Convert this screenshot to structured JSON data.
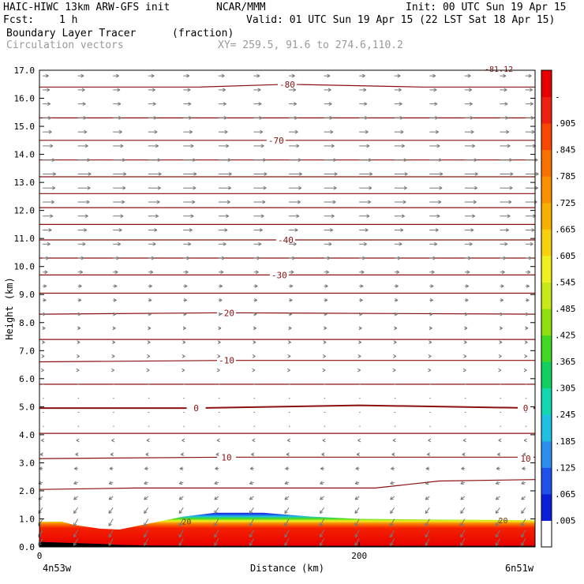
{
  "header": {
    "model": "HAIC-HIWC 13km ARW-GFS init",
    "org": "NCAR/MMM",
    "init": "Init: 00 UTC Sun 19 Apr 15",
    "fcst_label": "Fcst:",
    "fcst_value": "1 h",
    "valid": "Valid: 01 UTC Sun 19 Apr 15 (22 LST Sat 18 Apr 15)",
    "field1": "Boundary Layer Tracer",
    "field1_units": "(fraction)",
    "field2": "Circulation vectors",
    "xy": "XY= 259.5, 91.6 to 274.6,110.2"
  },
  "chart_data": {
    "type": "heatmap",
    "ylabel": "Height (km)",
    "xlabel": "Distance (km)",
    "ylim": [
      0,
      17
    ],
    "xlim": [
      0,
      310
    ],
    "y_ticks": [
      "0.0",
      "1.0",
      "2.0",
      "3.0",
      "4.0",
      "5.0",
      "6.0",
      "7.0",
      "8.0",
      "9.0",
      "10.0",
      "11.0",
      "12.0",
      "13.0",
      "14.0",
      "15.0",
      "16.0",
      "17.0"
    ],
    "x_ticks": [
      {
        "x": 0,
        "label": "0"
      },
      {
        "x": 200,
        "label": "200"
      }
    ],
    "x_endpoints": {
      "left": "4n53w",
      "right": "6n51w"
    },
    "colorbar": {
      "labels": [
        ".005",
        ".065",
        ".125",
        ".185",
        ".245",
        ".305",
        ".365",
        ".425",
        ".485",
        ".545",
        ".605",
        ".665",
        ".725",
        ".785",
        ".845",
        ".905",
        "-"
      ],
      "colors": [
        "#ffffff",
        "#0a1fd8",
        "#1f52ea",
        "#2d8ef0",
        "#20c0e4",
        "#10d8b0",
        "#10d060",
        "#40d820",
        "#90e010",
        "#c8e818",
        "#f0f020",
        "#f8d010",
        "#f8b000",
        "#f89000",
        "#f87000",
        "#f84800",
        "#f02010",
        "#e80000"
      ]
    },
    "isotherms": [
      {
        "label": "-80",
        "label_x": 155,
        "pts": [
          [
            0,
            16.4
          ],
          [
            100,
            16.4
          ],
          [
            155,
            16.5
          ],
          [
            240,
            16.4
          ],
          [
            310,
            16.4
          ]
        ]
      },
      {
        "label": "",
        "pts": [
          [
            0,
            15.3
          ],
          [
            150,
            15.3
          ],
          [
            310,
            15.3
          ]
        ]
      },
      {
        "label": "-70",
        "label_x": 148,
        "pts": [
          [
            0,
            14.5
          ],
          [
            148,
            14.5
          ],
          [
            310,
            14.5
          ]
        ]
      },
      {
        "label": "",
        "pts": [
          [
            0,
            13.8
          ],
          [
            310,
            13.8
          ]
        ]
      },
      {
        "label": "",
        "pts": [
          [
            0,
            13.2
          ],
          [
            310,
            13.2
          ]
        ]
      },
      {
        "label": "",
        "pts": [
          [
            0,
            12.6
          ],
          [
            310,
            12.6
          ]
        ]
      },
      {
        "label": "",
        "pts": [
          [
            0,
            12.1
          ],
          [
            310,
            12.1
          ]
        ]
      },
      {
        "label": "",
        "pts": [
          [
            0,
            11.5
          ],
          [
            310,
            11.5
          ]
        ]
      },
      {
        "label": "-40",
        "label_x": 154,
        "pts": [
          [
            0,
            10.95
          ],
          [
            310,
            10.95
          ]
        ]
      },
      {
        "label": "",
        "pts": [
          [
            0,
            10.3
          ],
          [
            310,
            10.3
          ]
        ]
      },
      {
        "label": "-30",
        "label_x": 150,
        "pts": [
          [
            0,
            9.7
          ],
          [
            310,
            9.7
          ]
        ]
      },
      {
        "label": "",
        "pts": [
          [
            0,
            9.05
          ],
          [
            310,
            9.05
          ]
        ]
      },
      {
        "label": "-20",
        "label_x": 117,
        "pts": [
          [
            0,
            8.3
          ],
          [
            117,
            8.35
          ],
          [
            310,
            8.3
          ]
        ]
      },
      {
        "label": "",
        "pts": [
          [
            0,
            7.4
          ],
          [
            310,
            7.4
          ]
        ]
      },
      {
        "label": "-10",
        "label_x": 117,
        "pts": [
          [
            0,
            6.6
          ],
          [
            117,
            6.65
          ],
          [
            310,
            6.65
          ]
        ]
      },
      {
        "label": "",
        "pts": [
          [
            0,
            5.8
          ],
          [
            310,
            5.8
          ]
        ]
      },
      {
        "label": "0",
        "label_x": 98,
        "pts": [
          [
            0,
            4.95
          ],
          [
            98,
            4.95
          ],
          [
            200,
            5.05
          ],
          [
            310,
            4.95
          ]
        ]
      },
      {
        "label": "",
        "pts": [
          [
            0,
            4.05
          ],
          [
            310,
            4.05
          ]
        ]
      },
      {
        "label": "10",
        "label_x": 117,
        "pts": [
          [
            0,
            3.15
          ],
          [
            117,
            3.2
          ],
          [
            310,
            3.2
          ]
        ]
      },
      {
        "label": "",
        "pts": [
          [
            0,
            2.05
          ],
          [
            60,
            2.1
          ],
          [
            150,
            2.1
          ],
          [
            210,
            2.1
          ],
          [
            250,
            2.35
          ],
          [
            310,
            2.4
          ]
        ]
      }
    ],
    "right_labels": [
      {
        "label": "0",
        "y": 4.95
      },
      {
        "label": "10",
        "y": 3.15
      }
    ],
    "corner_label": {
      "label": "-81.12"
    },
    "annotation_20": {
      "label": "20",
      "x": 92,
      "y": 0.8
    },
    "annotation_20b": {
      "label": "20",
      "x": 290,
      "y": 0.85
    },
    "tracer_top": [
      [
        0,
        0.9
      ],
      [
        14,
        0.9
      ],
      [
        22,
        0.78
      ],
      [
        38,
        0.65
      ],
      [
        50,
        0.62
      ],
      [
        70,
        0.85
      ],
      [
        90,
        1.08
      ],
      [
        110,
        1.22
      ],
      [
        140,
        1.22
      ],
      [
        170,
        1.08
      ],
      [
        200,
        1.0
      ],
      [
        240,
        0.98
      ],
      [
        310,
        0.95
      ]
    ],
    "surface": [
      [
        0,
        0.18
      ],
      [
        40,
        0.1
      ],
      [
        50,
        0.07
      ],
      [
        70,
        0.05
      ],
      [
        100,
        0.04
      ],
      [
        310,
        0.04
      ]
    ],
    "vectors": {
      "x_cols": [
        2,
        24,
        46,
        68,
        90,
        112,
        134,
        156,
        178,
        200,
        222,
        244,
        266,
        288,
        304
      ],
      "levels": [
        0.3,
        0.6,
        1.0,
        1.4,
        1.8,
        2.3,
        2.8,
        3.3,
        3.8,
        4.3,
        4.8,
        5.3,
        5.8,
        6.3,
        6.8,
        7.3,
        7.8,
        8.3,
        8.8,
        9.3,
        9.8,
        10.3,
        10.8,
        11.3,
        11.8,
        12.3,
        12.8,
        13.3,
        13.8,
        14.3,
        14.8,
        15.3,
        15.8,
        16.3,
        16.8
      ],
      "u_profile": [
        [
          0,
          -3
        ],
        [
          2.5,
          -3
        ],
        [
          4.5,
          0
        ],
        [
          6.5,
          1
        ],
        [
          8,
          2
        ],
        [
          9.5,
          3
        ],
        [
          11,
          6
        ],
        [
          12.5,
          9
        ],
        [
          13.5,
          10
        ],
        [
          14.5,
          7
        ],
        [
          15.5,
          6
        ],
        [
          16.5,
          5
        ],
        [
          17,
          4
        ]
      ],
      "v_profile": [
        [
          0,
          -2
        ],
        [
          1.2,
          -2
        ],
        [
          2,
          -0.5
        ],
        [
          3,
          0
        ],
        [
          17,
          0
        ]
      ]
    }
  }
}
